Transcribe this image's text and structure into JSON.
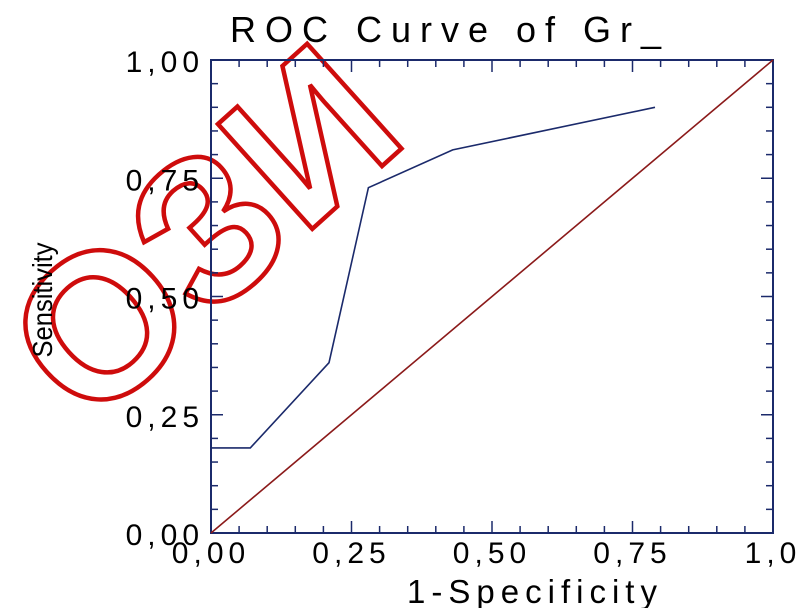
{
  "chart_data": {
    "type": "line",
    "title": "ROC Curve of Gr_",
    "xlabel": "1-Specificity",
    "ylabel": "Sensitivity",
    "xlim": [
      0,
      1
    ],
    "ylim": [
      0,
      1
    ],
    "x_ticks": [
      "0,00",
      "0,25",
      "0,50",
      "0,75",
      "1,0"
    ],
    "y_ticks": [
      "0,00",
      "0,25",
      "0,50",
      "0,75",
      "1,00"
    ],
    "x_tick_values": [
      0,
      0.25,
      0.5,
      0.75,
      1.0
    ],
    "y_tick_values": [
      0,
      0.25,
      0.5,
      0.75,
      1.0
    ],
    "grid": false,
    "series": [
      {
        "x": [
          0.0,
          0.07,
          0.21,
          0.28,
          0.43,
          0.79
        ],
        "y": [
          0.18,
          0.18,
          0.36,
          0.73,
          0.81,
          0.9
        ],
        "color": "#1b2a6b"
      },
      {
        "x": [
          0.0,
          1.0
        ],
        "y": [
          0.0,
          1.0
        ],
        "color": "#8b1a1a"
      }
    ],
    "frame_color": "#1b2a6b",
    "watermark_color": "#cc0000"
  }
}
